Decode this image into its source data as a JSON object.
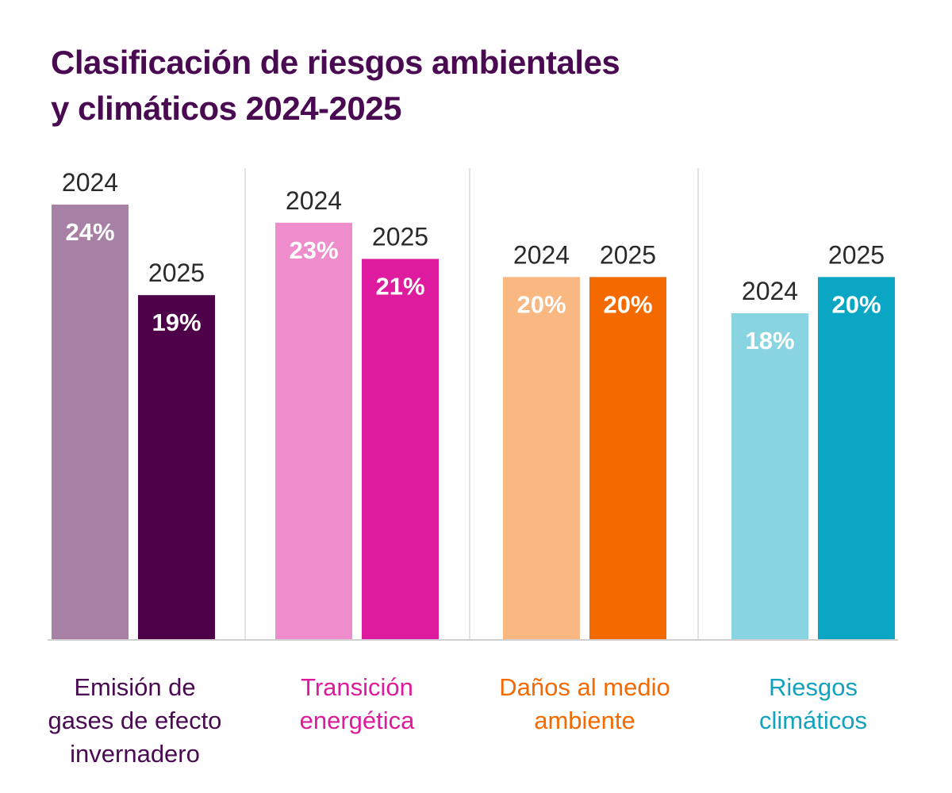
{
  "chart_data": {
    "type": "bar",
    "title_lines": [
      "Clasificación de riesgos ambientales",
      "y climáticos 2024-2025"
    ],
    "xlabel": "",
    "ylabel": "",
    "ylim": [
      0,
      24
    ],
    "grid": false,
    "legend": "none",
    "series_labels": [
      "2024",
      "2025"
    ],
    "categories": [
      {
        "label_lines": [
          "Emisión de",
          "gases de efecto",
          "invernadero"
        ],
        "label_color": "#4a0a52",
        "bars": [
          {
            "year": "2024",
            "value": 24,
            "label": "24%",
            "color": "#a680a5"
          },
          {
            "year": "2025",
            "value": 19,
            "label": "19%",
            "color": "#4e0049"
          }
        ]
      },
      {
        "label_lines": [
          "Transición",
          "energética"
        ],
        "label_color": "#dc1b9c",
        "bars": [
          {
            "year": "2024",
            "value": 23,
            "label": "23%",
            "color": "#ee8ccc"
          },
          {
            "year": "2025",
            "value": 21,
            "label": "21%",
            "color": "#de1a9e"
          }
        ]
      },
      {
        "label_lines": [
          "Daños al medio",
          "ambiente"
        ],
        "label_color": "#f56a00",
        "bars": [
          {
            "year": "2024",
            "value": 20,
            "label": "20%",
            "color": "#f9b782"
          },
          {
            "year": "2025",
            "value": 20,
            "label": "20%",
            "color": "#f56a00"
          }
        ]
      },
      {
        "label_lines": [
          "Riesgos",
          "climáticos"
        ],
        "label_color": "#12a2be",
        "bars": [
          {
            "year": "2024",
            "value": 18,
            "label": "18%",
            "color": "#88d4e1"
          },
          {
            "year": "2025",
            "value": 20,
            "label": "20%",
            "color": "#0aa6c4"
          }
        ]
      }
    ]
  }
}
